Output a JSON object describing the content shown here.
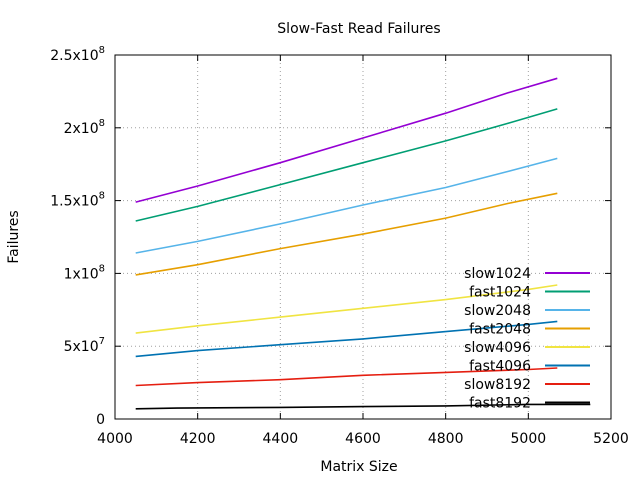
{
  "chart_data": {
    "type": "line",
    "title": "Slow-Fast Read Failures",
    "xlabel": "Matrix Size",
    "ylabel": "Failures",
    "xlim": [
      4000,
      5200
    ],
    "ylim": [
      0,
      250000000
    ],
    "grid": true,
    "legend_position": "bottom-right",
    "x_ticks": [
      {
        "value": 4000,
        "label": "4000"
      },
      {
        "value": 4200,
        "label": "4200"
      },
      {
        "value": 4400,
        "label": "4400"
      },
      {
        "value": 4600,
        "label": "4600"
      },
      {
        "value": 4800,
        "label": "4800"
      },
      {
        "value": 5000,
        "label": "5000"
      },
      {
        "value": 5200,
        "label": "5200"
      }
    ],
    "y_ticks": [
      {
        "value": 0,
        "mant": "0",
        "exp": ""
      },
      {
        "value": 50000000,
        "mant": "5x10",
        "exp": "7"
      },
      {
        "value": 100000000,
        "mant": "1x10",
        "exp": "8"
      },
      {
        "value": 150000000,
        "mant": "1.5x10",
        "exp": "8"
      },
      {
        "value": 200000000,
        "mant": "2x10",
        "exp": "8"
      },
      {
        "value": 250000000,
        "mant": "2.5x10",
        "exp": "8"
      }
    ],
    "series": [
      {
        "name": "slow1024",
        "color": "#9400d3",
        "x": [
          4050,
          4200,
          4400,
          4600,
          4800,
          4950,
          5070
        ],
        "y": [
          149000000,
          160000000,
          176000000,
          193000000,
          210000000,
          224000000,
          234000000
        ]
      },
      {
        "name": "fast1024",
        "color": "#009e73",
        "x": [
          4050,
          4200,
          4400,
          4600,
          4800,
          4950,
          5070
        ],
        "y": [
          136000000,
          146000000,
          161000000,
          176000000,
          191000000,
          203000000,
          213000000
        ]
      },
      {
        "name": "slow2048",
        "color": "#56b4e9",
        "x": [
          4050,
          4200,
          4400,
          4600,
          4800,
          4950,
          5070
        ],
        "y": [
          114000000,
          122000000,
          134000000,
          147000000,
          159000000,
          170000000,
          179000000
        ]
      },
      {
        "name": "fast2048",
        "color": "#e69f00",
        "x": [
          4050,
          4200,
          4400,
          4600,
          4800,
          4950,
          5070
        ],
        "y": [
          99000000,
          106000000,
          117000000,
          127000000,
          138000000,
          148000000,
          155000000
        ]
      },
      {
        "name": "slow4096",
        "color": "#f0e442",
        "x": [
          4050,
          4200,
          4400,
          4600,
          4800,
          5000,
          5070
        ],
        "y": [
          59000000,
          64000000,
          70000000,
          76000000,
          82000000,
          89000000,
          92000000
        ]
      },
      {
        "name": "fast4096",
        "color": "#0072b2",
        "x": [
          4050,
          4200,
          4400,
          4600,
          4800,
          5000,
          5070
        ],
        "y": [
          43000000,
          47000000,
          51000000,
          55000000,
          60000000,
          65000000,
          67000000
        ]
      },
      {
        "name": "slow8192",
        "color": "#e51e10",
        "x": [
          4050,
          4200,
          4400,
          4600,
          4800,
          5000,
          5070
        ],
        "y": [
          23000000,
          25000000,
          27000000,
          30000000,
          32000000,
          34000000,
          35000000
        ]
      },
      {
        "name": "fast8192",
        "color": "#000000",
        "x": [
          4050,
          4150,
          4400,
          4600,
          4800,
          5000,
          5150
        ],
        "y": [
          7000000,
          7500000,
          8000000,
          8500000,
          9000000,
          10000000,
          10000000
        ]
      }
    ]
  }
}
